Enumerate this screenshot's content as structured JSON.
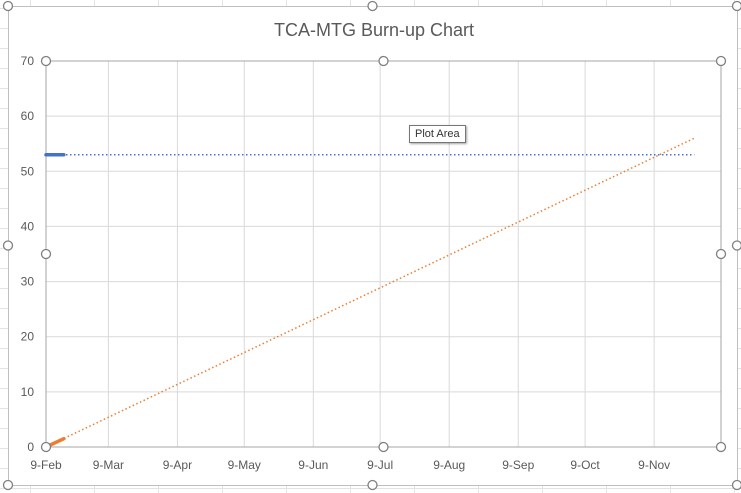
{
  "tooltip": "Plot Area",
  "chart_data": {
    "type": "line",
    "title": "TCA-MTG Burn-up Chart",
    "xlabel": "",
    "ylabel": "",
    "ylim": [
      0,
      70
    ],
    "yticks": [
      0,
      10,
      20,
      30,
      40,
      50,
      60,
      70
    ],
    "xlim": [
      "2019-02-09",
      "2019-12-09"
    ],
    "xticks": [
      "2019-02-09",
      "2019-03-09",
      "2019-04-09",
      "2019-05-09",
      "2019-06-09",
      "2019-07-09",
      "2019-08-09",
      "2019-09-09",
      "2019-10-09",
      "2019-11-09"
    ],
    "xtick_labels": [
      "9-Feb",
      "9-Mar",
      "9-Apr",
      "9-May",
      "9-Jun",
      "9-Jul",
      "9-Aug",
      "9-Sep",
      "9-Oct",
      "9-Nov"
    ],
    "grid": true,
    "legend": "none",
    "series": [
      {
        "kind": "solid",
        "color": "#4472C4",
        "points": [
          [
            "2019-02-09",
            53
          ],
          [
            "2019-02-17",
            53
          ]
        ]
      },
      {
        "kind": "trend",
        "color": "#4472C4",
        "points": [
          [
            "2019-02-09",
            53
          ],
          [
            "2019-11-27",
            53
          ]
        ]
      },
      {
        "kind": "solid",
        "color": "#ED7D31",
        "points": [
          [
            "2019-02-09",
            0
          ],
          [
            "2019-02-17",
            1.5
          ]
        ]
      },
      {
        "kind": "trend",
        "color": "#ED7D31",
        "points": [
          [
            "2019-02-09",
            0
          ],
          [
            "2019-11-27",
            56
          ]
        ]
      }
    ]
  }
}
